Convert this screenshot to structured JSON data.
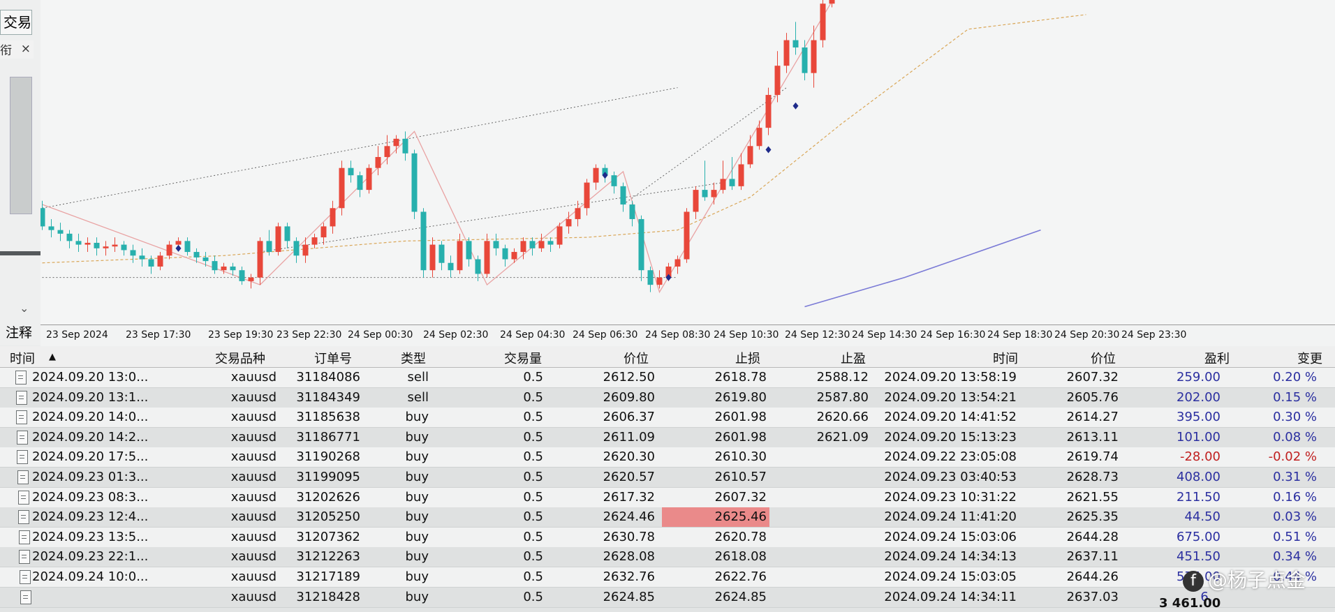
{
  "left_panel": {
    "tab": "交易",
    "sub": "衔",
    "close": "×",
    "note": "注释"
  },
  "colors": {
    "bull": "#e8473a",
    "bear": "#27b0ad",
    "zigzag": "#e9a3a3",
    "ma_slow": "#7a7ad6",
    "ma_fast": "#d9a657",
    "highlight": "#ea8a8a"
  },
  "time_axis": [
    "23 Sep 2024",
    "23 Sep 17:30",
    "23 Sep 19:30",
    "23 Sep 22:30",
    "24 Sep 00:30",
    "24 Sep 02:30",
    "24 Sep 04:30",
    "24 Sep 06:30",
    "24 Sep 08:30",
    "24 Sep 10:30",
    "24 Sep 12:30",
    "24 Sep 14:30",
    "24 Sep 16:30",
    "24 Sep 18:30",
    "24 Sep 20:30",
    "24 Sep 23:30"
  ],
  "columns": [
    "时间",
    "交易品种",
    "订单号",
    "类型",
    "交易量",
    "价位",
    "止损",
    "止盈",
    "时间",
    "价位",
    "盈利",
    "变更"
  ],
  "sort_arrow": "▲",
  "rows": [
    {
      "open_time": "2024.09.20 13:0...",
      "symbol": "xauusd",
      "order": "31184086",
      "type": "sell",
      "volume": "0.5",
      "price": "2612.50",
      "sl": "2618.78",
      "tp": "2588.12",
      "close_time": "2024.09.20 13:58:19",
      "close_price": "2607.32",
      "profit": "259.00",
      "change": "0.20 %"
    },
    {
      "open_time": "2024.09.20 13:1...",
      "symbol": "xauusd",
      "order": "31184349",
      "type": "sell",
      "volume": "0.5",
      "price": "2609.80",
      "sl": "2619.80",
      "tp": "2587.80",
      "close_time": "2024.09.20 13:54:21",
      "close_price": "2605.76",
      "profit": "202.00",
      "change": "0.15 %"
    },
    {
      "open_time": "2024.09.20 14:0...",
      "symbol": "xauusd",
      "order": "31185638",
      "type": "buy",
      "volume": "0.5",
      "price": "2606.37",
      "sl": "2601.98",
      "tp": "2620.66",
      "close_time": "2024.09.20 14:41:52",
      "close_price": "2614.27",
      "profit": "395.00",
      "change": "0.30 %"
    },
    {
      "open_time": "2024.09.20 14:2...",
      "symbol": "xauusd",
      "order": "31186771",
      "type": "buy",
      "volume": "0.5",
      "price": "2611.09",
      "sl": "2601.98",
      "tp": "2621.09",
      "close_time": "2024.09.20 15:13:23",
      "close_price": "2613.11",
      "profit": "101.00",
      "change": "0.08 %"
    },
    {
      "open_time": "2024.09.20 17:5...",
      "symbol": "xauusd",
      "order": "31190268",
      "type": "buy",
      "volume": "0.5",
      "price": "2620.30",
      "sl": "2610.30",
      "tp": "",
      "close_time": "2024.09.22 23:05:08",
      "close_price": "2619.74",
      "profit": "-28.00",
      "change": "-0.02 %"
    },
    {
      "open_time": "2024.09.23 01:3...",
      "symbol": "xauusd",
      "order": "31199095",
      "type": "buy",
      "volume": "0.5",
      "price": "2620.57",
      "sl": "2610.57",
      "tp": "",
      "close_time": "2024.09.23 03:40:53",
      "close_price": "2628.73",
      "profit": "408.00",
      "change": "0.31 %"
    },
    {
      "open_time": "2024.09.23 08:3...",
      "symbol": "xauusd",
      "order": "31202626",
      "type": "buy",
      "volume": "0.5",
      "price": "2617.32",
      "sl": "2607.32",
      "tp": "",
      "close_time": "2024.09.23 10:31:22",
      "close_price": "2621.55",
      "profit": "211.50",
      "change": "0.16 %"
    },
    {
      "open_time": "2024.09.23 12:4...",
      "symbol": "xauusd",
      "order": "31205250",
      "type": "buy",
      "volume": "0.5",
      "price": "2624.46",
      "sl": "2625.46",
      "tp": "",
      "close_time": "2024.09.24 11:41:20",
      "close_price": "2625.35",
      "profit": "44.50",
      "change": "0.03 %",
      "sl_hit": true
    },
    {
      "open_time": "2024.09.23 13:5...",
      "symbol": "xauusd",
      "order": "31207362",
      "type": "buy",
      "volume": "0.5",
      "price": "2630.78",
      "sl": "2620.78",
      "tp": "",
      "close_time": "2024.09.24 15:03:06",
      "close_price": "2644.28",
      "profit": "675.00",
      "change": "0.51 %"
    },
    {
      "open_time": "2024.09.23 22:1...",
      "symbol": "xauusd",
      "order": "31212263",
      "type": "buy",
      "volume": "0.5",
      "price": "2628.08",
      "sl": "2618.08",
      "tp": "",
      "close_time": "2024.09.24 14:34:13",
      "close_price": "2637.11",
      "profit": "451.50",
      "change": "0.34 %"
    },
    {
      "open_time": "2024.09.24 10:0...",
      "symbol": "xauusd",
      "order": "31217189",
      "type": "buy",
      "volume": "0.5",
      "price": "2632.76",
      "sl": "2622.76",
      "tp": "",
      "close_time": "2024.09.24 15:03:05",
      "close_price": "2644.26",
      "profit": "575.00",
      "change": "0.44 %"
    },
    {
      "open_time": "",
      "symbol": "xauusd",
      "order": "31218428",
      "type": "buy",
      "volume": "0.5",
      "price": "2624.85",
      "sl": "2624.85",
      "tp": "",
      "close_time": "2024.09.24 14:34:11",
      "close_price": "2637.03",
      "profit": "6...",
      "change": ""
    }
  ],
  "total": "3 461.00",
  "watermark": "@杨子点金",
  "chart": {
    "candles": [
      [
        2617,
        2612,
        2619,
        2611
      ],
      [
        2612,
        2611,
        2614,
        2609
      ],
      [
        2611,
        2610,
        2613,
        2608
      ],
      [
        2610,
        2608,
        2611,
        2606
      ],
      [
        2608,
        2607,
        2610,
        2605
      ],
      [
        2607,
        2607.5,
        2609,
        2605
      ],
      [
        2607.5,
        2606,
        2609,
        2604
      ],
      [
        2606,
        2606.5,
        2608,
        2604
      ],
      [
        2606.5,
        2607,
        2609,
        2605
      ],
      [
        2607,
        2605.5,
        2608,
        2604
      ],
      [
        2605.5,
        2604,
        2607,
        2602
      ],
      [
        2604,
        2603,
        2606,
        2601
      ],
      [
        2603,
        2601,
        2604,
        2599
      ],
      [
        2601,
        2604,
        2605,
        2600
      ],
      [
        2604,
        2607,
        2608,
        2603
      ],
      [
        2607,
        2608,
        2609,
        2606
      ],
      [
        2608,
        2605,
        2609,
        2604
      ],
      [
        2605,
        2603.5,
        2606,
        2602
      ],
      [
        2603.5,
        2602.5,
        2605,
        2601
      ],
      [
        2602.5,
        2600,
        2604,
        2599
      ],
      [
        2600,
        2601,
        2602,
        2599
      ],
      [
        2601,
        2600,
        2602,
        2598.5
      ],
      [
        2600,
        2597,
        2601,
        2596
      ],
      [
        2597,
        2598,
        2599,
        2595
      ],
      [
        2598,
        2608,
        2609,
        2596
      ],
      [
        2608,
        2605,
        2611,
        2604
      ],
      [
        2605,
        2612,
        2613,
        2604
      ],
      [
        2612,
        2608,
        2613,
        2606
      ],
      [
        2608,
        2604,
        2609,
        2602
      ],
      [
        2604,
        2607,
        2609,
        2602
      ],
      [
        2607,
        2609,
        2610,
        2606
      ],
      [
        2609,
        2612,
        2613,
        2607
      ],
      [
        2612,
        2617,
        2619,
        2610
      ],
      [
        2617,
        2628,
        2630,
        2615
      ],
      [
        2628,
        2626,
        2630,
        2624
      ],
      [
        2626,
        2622,
        2627,
        2620
      ],
      [
        2622,
        2628,
        2629,
        2621
      ],
      [
        2628,
        2631,
        2634,
        2626
      ],
      [
        2631,
        2634,
        2637,
        2629
      ],
      [
        2634,
        2636,
        2637,
        2632
      ],
      [
        2636,
        2632,
        2638,
        2630
      ],
      [
        2632,
        2616,
        2633,
        2614
      ],
      [
        2616,
        2600,
        2617,
        2598
      ],
      [
        2600,
        2607,
        2609,
        2598
      ],
      [
        2607,
        2602,
        2608,
        2600
      ],
      [
        2602,
        2600,
        2604,
        2598
      ],
      [
        2600,
        2608,
        2610,
        2599
      ],
      [
        2608,
        2603,
        2609,
        2601
      ],
      [
        2603,
        2599,
        2604,
        2597
      ],
      [
        2599,
        2608,
        2610,
        2598
      ],
      [
        2608,
        2606,
        2610,
        2604
      ],
      [
        2606,
        2603,
        2607,
        2601
      ],
      [
        2603,
        2605,
        2606,
        2602
      ],
      [
        2605,
        2608,
        2609,
        2603
      ],
      [
        2608,
        2606,
        2609,
        2604
      ],
      [
        2606,
        2608,
        2610,
        2605
      ],
      [
        2608,
        2607,
        2609,
        2605
      ],
      [
        2607,
        2612,
        2613,
        2606
      ],
      [
        2612,
        2614,
        2616,
        2610
      ],
      [
        2614,
        2617,
        2619,
        2612
      ],
      [
        2617,
        2624,
        2625,
        2615
      ],
      [
        2624,
        2628,
        2629,
        2622
      ],
      [
        2628,
        2626,
        2629,
        2624
      ],
      [
        2626,
        2623,
        2627,
        2621
      ],
      [
        2623,
        2618,
        2624,
        2616
      ],
      [
        2618,
        2614,
        2619,
        2612
      ],
      [
        2614,
        2600,
        2615,
        2597
      ],
      [
        2600,
        2596,
        2601,
        2594
      ],
      [
        2596,
        2598,
        2600,
        2595
      ],
      [
        2598,
        2601,
        2602,
        2597
      ],
      [
        2601,
        2603,
        2604,
        2599
      ],
      [
        2603,
        2616,
        2617,
        2602
      ],
      [
        2616,
        2622,
        2623,
        2614
      ],
      [
        2622,
        2620,
        2630,
        2619
      ],
      [
        2620,
        2622,
        2624,
        2618
      ],
      [
        2622,
        2625,
        2630,
        2621
      ],
      [
        2625,
        2623,
        2631,
        2622
      ],
      [
        2623,
        2629,
        2632,
        2622
      ],
      [
        2629,
        2634,
        2637,
        2628
      ],
      [
        2634,
        2639,
        2641,
        2633
      ],
      [
        2639,
        2648,
        2650,
        2637
      ],
      [
        2648,
        2656,
        2660,
        2646
      ],
      [
        2656,
        2663,
        2665,
        2654
      ],
      [
        2663,
        2661,
        2668,
        2659
      ],
      [
        2661,
        2654,
        2663,
        2652
      ],
      [
        2654,
        2663,
        2667,
        2650
      ],
      [
        2663,
        2673,
        2678,
        2661
      ],
      [
        2673,
        2678,
        2680,
        2672
      ],
      [
        2678,
        2676,
        2680,
        2674
      ],
      [
        2676,
        2682,
        2683,
        2675
      ]
    ],
    "price_top": 2674,
    "price_bottom": 2588,
    "zigzag": [
      [
        0,
        2618
      ],
      [
        24,
        2596
      ],
      [
        41,
        2638
      ],
      [
        49,
        2596
      ],
      [
        64,
        2627
      ],
      [
        68,
        2594
      ],
      [
        89,
        2682
      ]
    ],
    "channel_lines": [
      [
        [
          0,
          2617
        ],
        [
          70,
          2650
        ]
      ],
      [
        [
          0,
          2598
        ],
        [
          70,
          2598
        ]
      ],
      [
        [
          24,
          2605
        ],
        [
          75,
          2624
        ]
      ],
      [
        [
          64,
          2618
        ],
        [
          82,
          2650
        ]
      ]
    ],
    "ma_fast": [
      [
        0,
        2602
      ],
      [
        20,
        2604
      ],
      [
        40,
        2608
      ],
      [
        60,
        2609
      ],
      [
        70,
        2611
      ],
      [
        78,
        2620
      ],
      [
        88,
        2640
      ],
      [
        102,
        2666
      ],
      [
        115,
        2670
      ]
    ],
    "ma_slow": [
      [
        84,
        2590
      ],
      [
        95,
        2598
      ],
      [
        110,
        2611
      ]
    ],
    "markers": [
      [
        15,
        2606
      ],
      [
        62,
        2626
      ],
      [
        69,
        2598
      ],
      [
        80,
        2633
      ],
      [
        83,
        2645
      ]
    ]
  }
}
